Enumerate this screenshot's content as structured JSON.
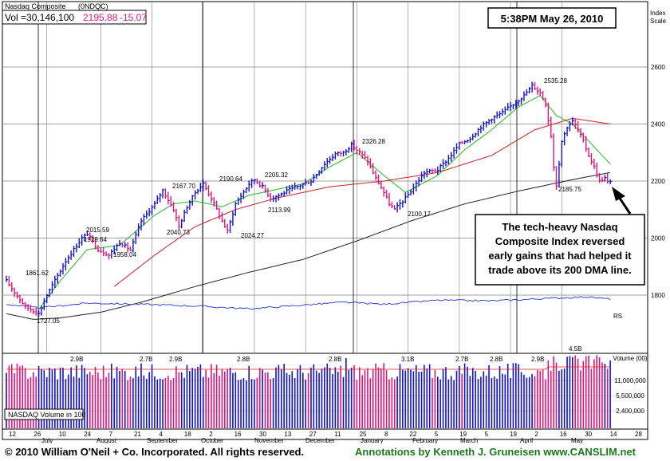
{
  "header": {
    "index_name": "Nasdaq Composite",
    "symbol": "(0NDQC)",
    "vol_label": "Vol =30,146,100",
    "close": "2195.88",
    "change": "-15.07",
    "timestamp": "5:38PM May 26, 2010",
    "scale_label_1": "Index",
    "scale_label_2": "Scale"
  },
  "colors": {
    "up_bar": "#1111cc",
    "down_bar": "#e0147a",
    "ma_short": "#22bb22",
    "ma_mid": "#cc2222",
    "ma_long": "#222222",
    "rs_line": "#2233cc",
    "grid": "#808080",
    "credits": "#1a7a1a"
  },
  "chart_data": {
    "type": "ohlc",
    "price_scale": {
      "ticks": [
        "2600",
        "2400",
        "2200",
        "2000",
        "1800"
      ],
      "ylim": [
        1700,
        2650
      ]
    },
    "volume_scale": {
      "ticks": [
        "Volume (00)",
        "11,000,000",
        "5,500,000",
        "2,400,000"
      ]
    },
    "x_tick_labels": [
      "12",
      "26",
      "10",
      "24",
      "7",
      "21",
      "4",
      "18",
      "2",
      "16",
      "30",
      "13",
      "27",
      "11",
      "25",
      "8",
      "22",
      "5",
      "19",
      "5",
      "19",
      "2",
      "16",
      "30",
      "14",
      "28"
    ],
    "month_labels": [
      "July",
      "August",
      "September",
      "October",
      "November",
      "December",
      "January",
      "February",
      "March",
      "April",
      "May"
    ],
    "annotated_points": [
      {
        "label": "1861.62",
        "value": 1861.62
      },
      {
        "label": "1727.05",
        "value": 1727.05
      },
      {
        "label": "2015.59",
        "value": 2015.59
      },
      {
        "label": "1929.64",
        "value": 1929.64
      },
      {
        "label": "1958.04",
        "value": 1958.04
      },
      {
        "label": "2167.70",
        "value": 2167.7
      },
      {
        "label": "2040.73",
        "value": 2040.73
      },
      {
        "label": "2190.64",
        "value": 2190.64
      },
      {
        "label": "2024.27",
        "value": 2024.27
      },
      {
        "label": "2205.32",
        "value": 2205.32
      },
      {
        "label": "2113.99",
        "value": 2113.99
      },
      {
        "label": "2326.28",
        "value": 2326.28
      },
      {
        "label": "2100.17",
        "value": 2100.17
      },
      {
        "label": "2535.28",
        "value": 2535.28
      },
      {
        "label": "2185.75",
        "value": 2185.75
      }
    ],
    "volume_annotations": [
      "2.9B",
      "2.7B",
      "2.9B",
      "2.8B",
      "2.8B",
      "3.1B",
      "2.7B",
      "2.8B",
      "2.9B",
      "4.5B"
    ],
    "rs_label": "RS",
    "volume_panel_label": "NASDAQ Volume in 100",
    "series": [
      {
        "type": "ohlc",
        "anchors": [
          [
            0,
            1850
          ],
          [
            3,
            1810
          ],
          [
            7,
            1760
          ],
          [
            12,
            1735
          ],
          [
            15,
            1800
          ],
          [
            22,
            1920
          ],
          [
            28,
            2000
          ],
          [
            30,
            2015
          ],
          [
            34,
            1960
          ],
          [
            38,
            1940
          ],
          [
            42,
            1985
          ],
          [
            46,
            1958
          ],
          [
            50,
            2060
          ],
          [
            55,
            2120
          ],
          [
            58,
            2168
          ],
          [
            62,
            2100
          ],
          [
            64,
            2041
          ],
          [
            67,
            2110
          ],
          [
            70,
            2160
          ],
          [
            73,
            2191
          ],
          [
            76,
            2140
          ],
          [
            80,
            2060
          ],
          [
            82,
            2024
          ],
          [
            85,
            2120
          ],
          [
            90,
            2190
          ],
          [
            92,
            2205
          ],
          [
            95,
            2180
          ],
          [
            98,
            2140
          ],
          [
            101,
            2150
          ],
          [
            104,
            2165
          ],
          [
            109,
            2185
          ],
          [
            113,
            2200
          ],
          [
            118,
            2260
          ],
          [
            122,
            2295
          ],
          [
            125,
            2300
          ],
          [
            128,
            2326
          ],
          [
            131,
            2300
          ],
          [
            134,
            2270
          ],
          [
            137,
            2210
          ],
          [
            140,
            2160
          ],
          [
            142,
            2120
          ],
          [
            144,
            2100
          ],
          [
            148,
            2140
          ],
          [
            152,
            2190
          ],
          [
            155,
            2230
          ],
          [
            160,
            2240
          ],
          [
            164,
            2280
          ],
          [
            168,
            2330
          ],
          [
            172,
            2350
          ],
          [
            176,
            2390
          ],
          [
            180,
            2420
          ],
          [
            184,
            2440
          ],
          [
            188,
            2470
          ],
          [
            192,
            2500
          ],
          [
            195,
            2535
          ],
          [
            198,
            2510
          ],
          [
            200,
            2470
          ],
          [
            202,
            2360
          ],
          [
            203,
            2250
          ],
          [
            204,
            2186
          ],
          [
            206,
            2340
          ],
          [
            208,
            2390
          ],
          [
            210,
            2410
          ],
          [
            212,
            2380
          ],
          [
            214,
            2340
          ],
          [
            216,
            2290
          ],
          [
            218,
            2250
          ],
          [
            220,
            2200
          ],
          [
            222,
            2211
          ],
          [
            223,
            2196
          ]
        ]
      },
      {
        "name": "",
        "type": "line",
        "anchors": [
          [
            12,
            1750
          ],
          [
            20,
            1850
          ],
          [
            30,
            1960
          ],
          [
            42,
            1975
          ],
          [
            55,
            2080
          ],
          [
            62,
            2120
          ],
          [
            70,
            2130
          ],
          [
            80,
            2110
          ],
          [
            90,
            2150
          ],
          [
            100,
            2170
          ],
          [
            110,
            2190
          ],
          [
            120,
            2250
          ],
          [
            130,
            2300
          ],
          [
            140,
            2220
          ],
          [
            148,
            2160
          ],
          [
            160,
            2220
          ],
          [
            170,
            2310
          ],
          [
            180,
            2380
          ],
          [
            190,
            2460
          ],
          [
            198,
            2500
          ],
          [
            204,
            2430
          ],
          [
            210,
            2400
          ],
          [
            216,
            2340
          ],
          [
            224,
            2260
          ]
        ]
      },
      {
        "name": "",
        "type": "line",
        "anchors": [
          [
            40,
            1830
          ],
          [
            55,
            1940
          ],
          [
            70,
            2040
          ],
          [
            85,
            2100
          ],
          [
            100,
            2140
          ],
          [
            120,
            2180
          ],
          [
            140,
            2200
          ],
          [
            160,
            2230
          ],
          [
            180,
            2290
          ],
          [
            196,
            2380
          ],
          [
            210,
            2420
          ],
          [
            224,
            2400
          ]
        ]
      },
      {
        "name": "",
        "type": "line",
        "anchors": [
          [
            0,
            1735
          ],
          [
            10,
            1715
          ],
          [
            20,
            1720
          ],
          [
            35,
            1740
          ],
          [
            50,
            1775
          ],
          [
            70,
            1830
          ],
          [
            90,
            1880
          ],
          [
            110,
            1925
          ],
          [
            130,
            1990
          ],
          [
            150,
            2060
          ],
          [
            170,
            2120
          ],
          [
            190,
            2165
          ],
          [
            210,
            2205
          ],
          [
            224,
            2230
          ]
        ]
      },
      {
        "name": "",
        "type": "line",
        "anchors": [
          [
            0,
            1768
          ],
          [
            12,
            1755
          ],
          [
            30,
            1772
          ],
          [
            50,
            1768
          ],
          [
            70,
            1762
          ],
          [
            90,
            1752
          ],
          [
            110,
            1765
          ],
          [
            125,
            1775
          ],
          [
            140,
            1768
          ],
          [
            160,
            1782
          ],
          [
            180,
            1780
          ],
          [
            200,
            1788
          ],
          [
            215,
            1794
          ],
          [
            224,
            1786
          ]
        ]
      }
    ]
  },
  "annotation": {
    "lines": [
      "The tech-heavy Nasdaq",
      "Composite Index reversed",
      "early gains that had helped it",
      "trade above its 200 DMA line."
    ]
  },
  "footer": {
    "copyright": "© 2010 William O'Neil + Co. Incorporated. All rights reserved.",
    "credits": "Annotations by Kenneth J. Gruneisen www.CANSLIM.net"
  }
}
